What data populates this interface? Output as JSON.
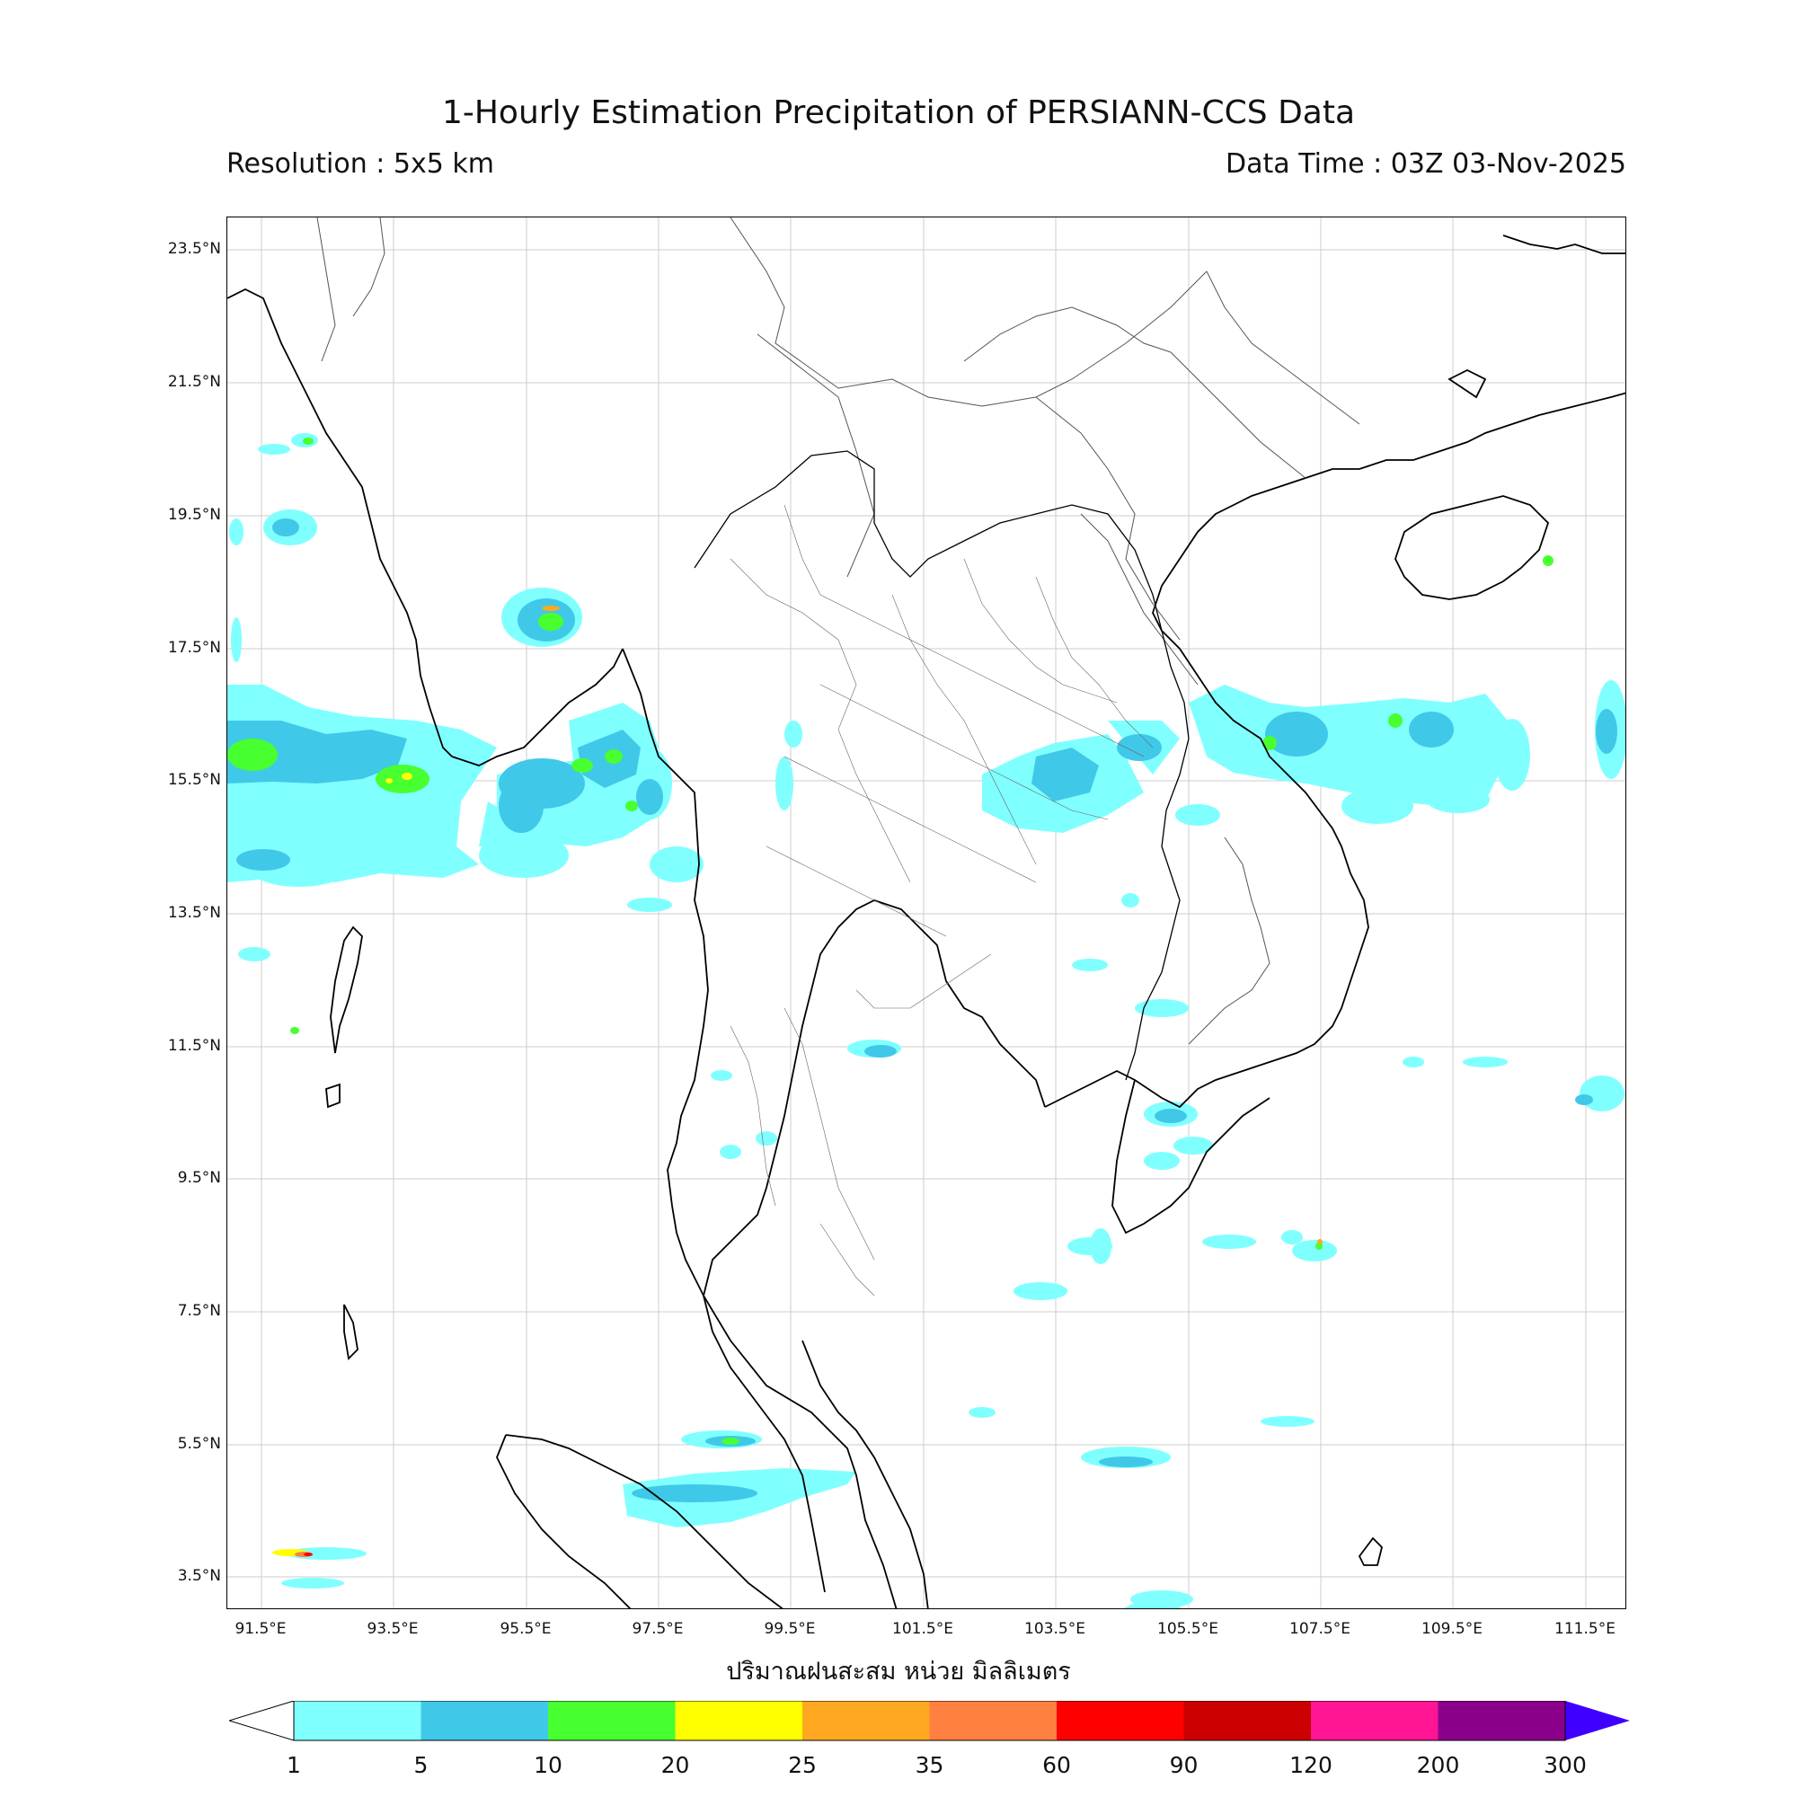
{
  "header": {
    "title": "1-Hourly Estimation Precipitation of PERSIANN-CCS Data",
    "resolution": "Resolution : 5x5 km",
    "data_time": "Data Time : 03Z 03-Nov-2025"
  },
  "map": {
    "lat_labels": [
      "23.5°N",
      "21.5°N",
      "19.5°N",
      "17.5°N",
      "15.5°N",
      "13.5°N",
      "11.5°N",
      "9.5°N",
      "7.5°N",
      "5.5°N",
      "3.5°N"
    ],
    "lon_labels": [
      "91.5°E",
      "93.5°E",
      "95.5°E",
      "97.5°E",
      "99.5°E",
      "101.5°E",
      "103.5°E",
      "105.5°E",
      "107.5°E",
      "109.5°E",
      "111.5°E"
    ],
    "xlabel": "ปริมาณฝนสะสม หน่วย มิลลิเมตร"
  },
  "colorbar": {
    "labels": [
      "1",
      "5",
      "10",
      "20",
      "25",
      "35",
      "60",
      "90",
      "120",
      "200",
      "300"
    ],
    "colors": [
      "#80ffff",
      "#40c8e8",
      "#48ff30",
      "#ffff00",
      "#ffa820",
      "#ff8040",
      "#ff0000",
      "#cc0000",
      "#ff1493",
      "#8b008b",
      "#4000ff"
    ]
  }
}
